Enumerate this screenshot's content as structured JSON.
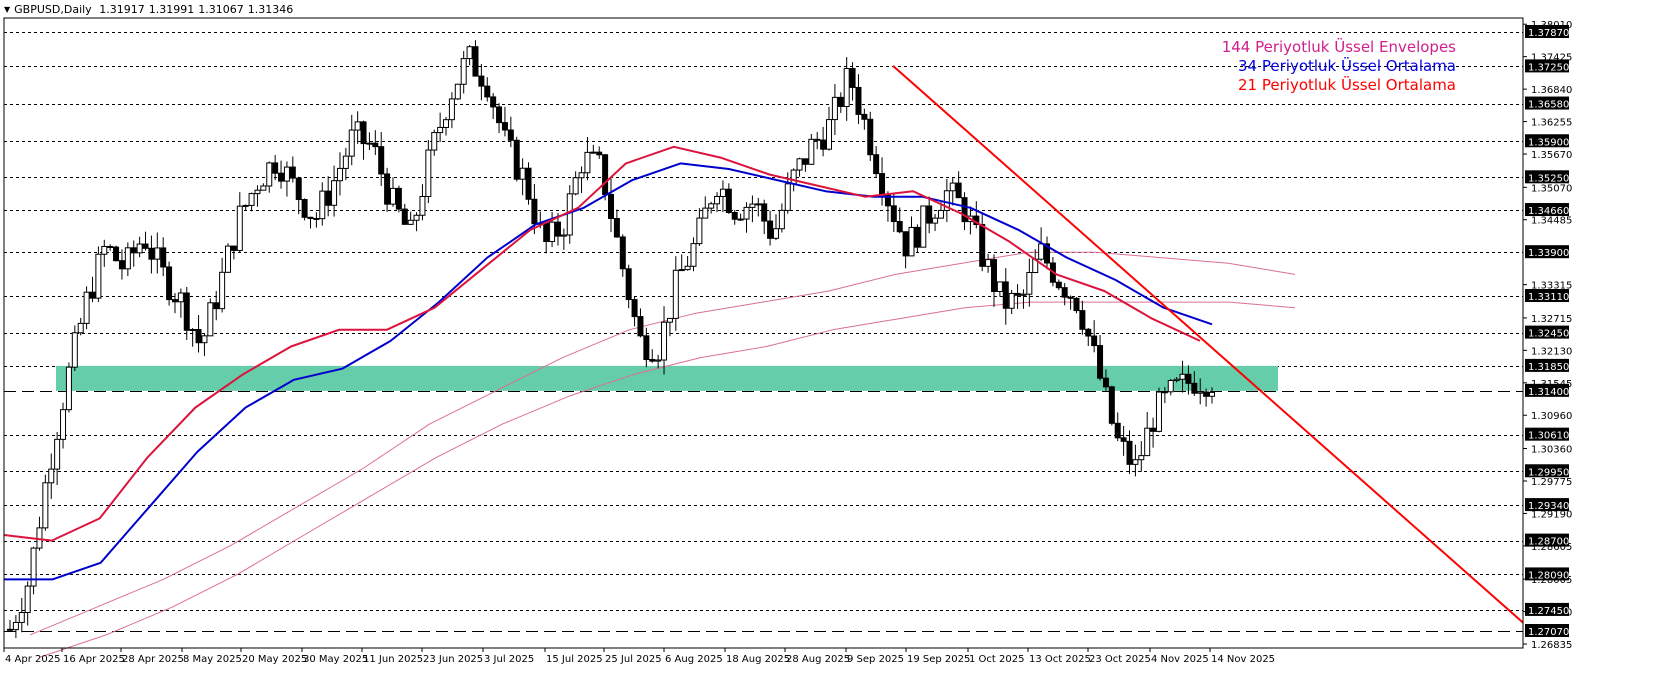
{
  "window": {
    "symbol": "GBPUSD",
    "timeframe": "Daily",
    "title": "GBPUSD,Daily",
    "ohlc": {
      "open": "1.31917",
      "high": "1.31991",
      "low": "1.31067",
      "close": "1.31346"
    }
  },
  "legend": {
    "items": [
      {
        "label": "144 Periyotluk Üssel Envelopes",
        "color": "#d0208c"
      },
      {
        "label": "34 Periyotluk Üssel Ortalama",
        "color": "#0000e0"
      },
      {
        "label": "21 Periyotluk Üssel Ortalama",
        "color": "#ff0000"
      }
    ]
  },
  "colors": {
    "ema21": "#dc143c",
    "ema34": "#0000cd",
    "envelope": "#db7093",
    "trendline": "#ff0000",
    "support_zone": "#66cdaa",
    "bull_candle": "#ffffff",
    "bear_candle": "#000000"
  },
  "chart_data": {
    "type": "candlestick",
    "title": "GBPUSD,Daily",
    "xlabel": "",
    "ylabel": "",
    "ylim": [
      1.2683,
      1.3815
    ],
    "grid": false,
    "x_tick_labels": [
      "4 Apr 2025",
      "16 Apr 2025",
      "28 Apr 2025",
      "8 May 2025",
      "20 May 2025",
      "30 May 2025",
      "11 Jun 2025",
      "23 Jun 2025",
      "3 Jul 2025",
      "15 Jul 2025",
      "25 Jul 2025",
      "6 Aug 2025",
      "18 Aug 2025",
      "28 Aug 2025",
      "9 Sep 2025",
      "19 Sep 2025",
      "1 Oct 2025",
      "13 Oct 2025",
      "23 Oct 2025",
      "4 Nov 2025",
      "14 Nov 2025"
    ],
    "y_tick_labels": [
      "1.38010",
      "1.37425",
      "1.36840",
      "1.36255",
      "1.35670",
      "1.35070",
      "1.34485",
      "1.33315",
      "1.32715",
      "1.32130",
      "1.31545",
      "1.30960",
      "1.30360",
      "1.29775",
      "1.29190",
      "1.28605",
      "1.28005",
      "1.27420",
      "1.26835"
    ],
    "horizontal_levels": [
      {
        "price": "1.37870",
        "style": "dotted"
      },
      {
        "price": "1.37250",
        "style": "dotted"
      },
      {
        "price": "1.36580",
        "style": "dotted"
      },
      {
        "price": "1.35900",
        "style": "dotted"
      },
      {
        "price": "1.35250",
        "style": "dotted"
      },
      {
        "price": "1.34660",
        "style": "dotted"
      },
      {
        "price": "1.33900",
        "style": "dotted"
      },
      {
        "price": "1.33110",
        "style": "dotted"
      },
      {
        "price": "1.32450",
        "style": "dotted"
      },
      {
        "price": "1.31850",
        "style": "dotted"
      },
      {
        "price": "1.31400",
        "style": "dashed"
      },
      {
        "price": "1.30610",
        "style": "dotted"
      },
      {
        "price": "1.29950",
        "style": "dotted"
      },
      {
        "price": "1.29340",
        "style": "dotted"
      },
      {
        "price": "1.28700",
        "style": "dotted"
      },
      {
        "price": "1.28090",
        "style": "dotted"
      },
      {
        "price": "1.27450",
        "style": "dotted"
      },
      {
        "price": "1.27070",
        "style": "dashed"
      }
    ],
    "support_zone": {
      "from": 1.314,
      "to": 1.3185,
      "x_start_label": "16 Apr 2025",
      "x_end_label": "14 Nov 2025"
    },
    "trendline": {
      "from": {
        "date": "Sep 2025 high",
        "price": 1.3726
      },
      "to": {
        "date": "right edge",
        "price": 1.272
      }
    },
    "series": [
      {
        "name": "EMA 21",
        "points_y": [
          1.288,
          1.287,
          1.291,
          1.302,
          1.311,
          1.317,
          1.322,
          1.325,
          1.325,
          1.329,
          1.336,
          1.343,
          1.347,
          1.355,
          1.358,
          1.356,
          1.353,
          1.351,
          1.349,
          1.35,
          1.346,
          1.341,
          1.335,
          1.332,
          1.327,
          1.323
        ]
      },
      {
        "name": "EMA 34",
        "points_y": [
          1.28,
          1.28,
          1.283,
          1.293,
          1.303,
          1.311,
          1.316,
          1.318,
          1.323,
          1.33,
          1.338,
          1.344,
          1.347,
          1.352,
          1.355,
          1.354,
          1.352,
          1.35,
          1.349,
          1.349,
          1.347,
          1.343,
          1.338,
          1.334,
          1.329,
          1.326
        ]
      },
      {
        "name": "Envelope upper",
        "points_y": [
          1.27,
          1.275,
          1.28,
          1.286,
          1.293,
          1.3,
          1.308,
          1.314,
          1.32,
          1.325,
          1.328,
          1.33,
          1.332,
          1.335,
          1.337,
          1.339,
          1.339,
          1.338,
          1.337,
          1.335
        ]
      },
      {
        "name": "Envelope lower",
        "points_y": [
          1.266,
          1.27,
          1.275,
          1.281,
          1.288,
          1.295,
          1.302,
          1.308,
          1.313,
          1.317,
          1.32,
          1.322,
          1.325,
          1.327,
          1.329,
          1.33,
          1.33,
          1.33,
          1.33,
          1.329
        ]
      }
    ],
    "candles_summary": {
      "start_low": 1.2707,
      "high_point": {
        "date": "1 Jul 2025",
        "price": 1.3788
      },
      "secondary_high": {
        "date": "17 Sep 2025",
        "price": 1.3726
      },
      "recent_low": {
        "date": "4 Nov 2025",
        "price": 1.301
      },
      "last": {
        "open": 1.31917,
        "high": 1.31991,
        "low": 1.31067,
        "close": 1.31346
      }
    }
  }
}
